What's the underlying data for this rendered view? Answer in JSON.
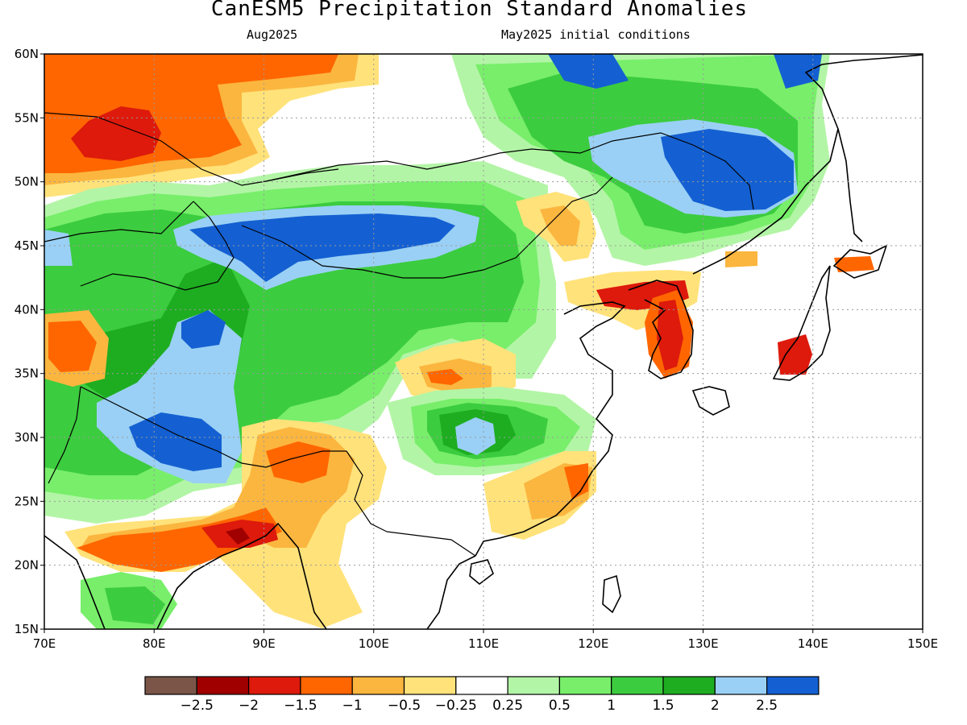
{
  "title": "CanESM5 Precipitation Standard Anomalies",
  "subtitle_left": "Aug2025",
  "subtitle_right": "May2025 initial conditions",
  "lat_ticks": [
    "60N",
    "55N",
    "50N",
    "45N",
    "40N",
    "35N",
    "30N",
    "25N",
    "20N",
    "15N"
  ],
  "lon_ticks": [
    "70E",
    "80E",
    "90E",
    "100E",
    "110E",
    "120E",
    "130E",
    "140E",
    "150E"
  ],
  "colorbar": {
    "colors": [
      "#7a5548",
      "#a00000",
      "#dd1a0c",
      "#ff6600",
      "#fbb63f",
      "#ffe27a",
      "#ffffff",
      "#b3f5a6",
      "#78ee6b",
      "#3ccc3f",
      "#1ead21",
      "#9ad0f5",
      "#1460d2"
    ],
    "labels": [
      "−2.5",
      "−2",
      "−1.5",
      "−1",
      "−0.5",
      "−0.25",
      "0.25",
      "0.5",
      "1",
      "1.5",
      "2",
      "2.5"
    ]
  },
  "map": {
    "extent": {
      "lon": [
        70,
        150
      ],
      "lat": [
        15,
        60
      ]
    },
    "anomaly_patches": [
      {
        "level": "-1",
        "region": "northern Kazakhstan / West Siberia"
      },
      {
        "level": "-1.5",
        "region": "Kazakhstan"
      },
      {
        "level": "2.5",
        "region": "Dzungaria to western Mongolia"
      },
      {
        "level": "2.5",
        "region": "Tibetan Plateau / Nepal"
      },
      {
        "level": "2.5",
        "region": "Amur basin / NE China"
      },
      {
        "level": "-2.5",
        "region": "Bangladesh"
      },
      {
        "level": "-1.5",
        "region": "Korea"
      },
      {
        "level": "-1.5",
        "region": "central Japan"
      },
      {
        "level": "2",
        "region": "south China"
      }
    ]
  }
}
